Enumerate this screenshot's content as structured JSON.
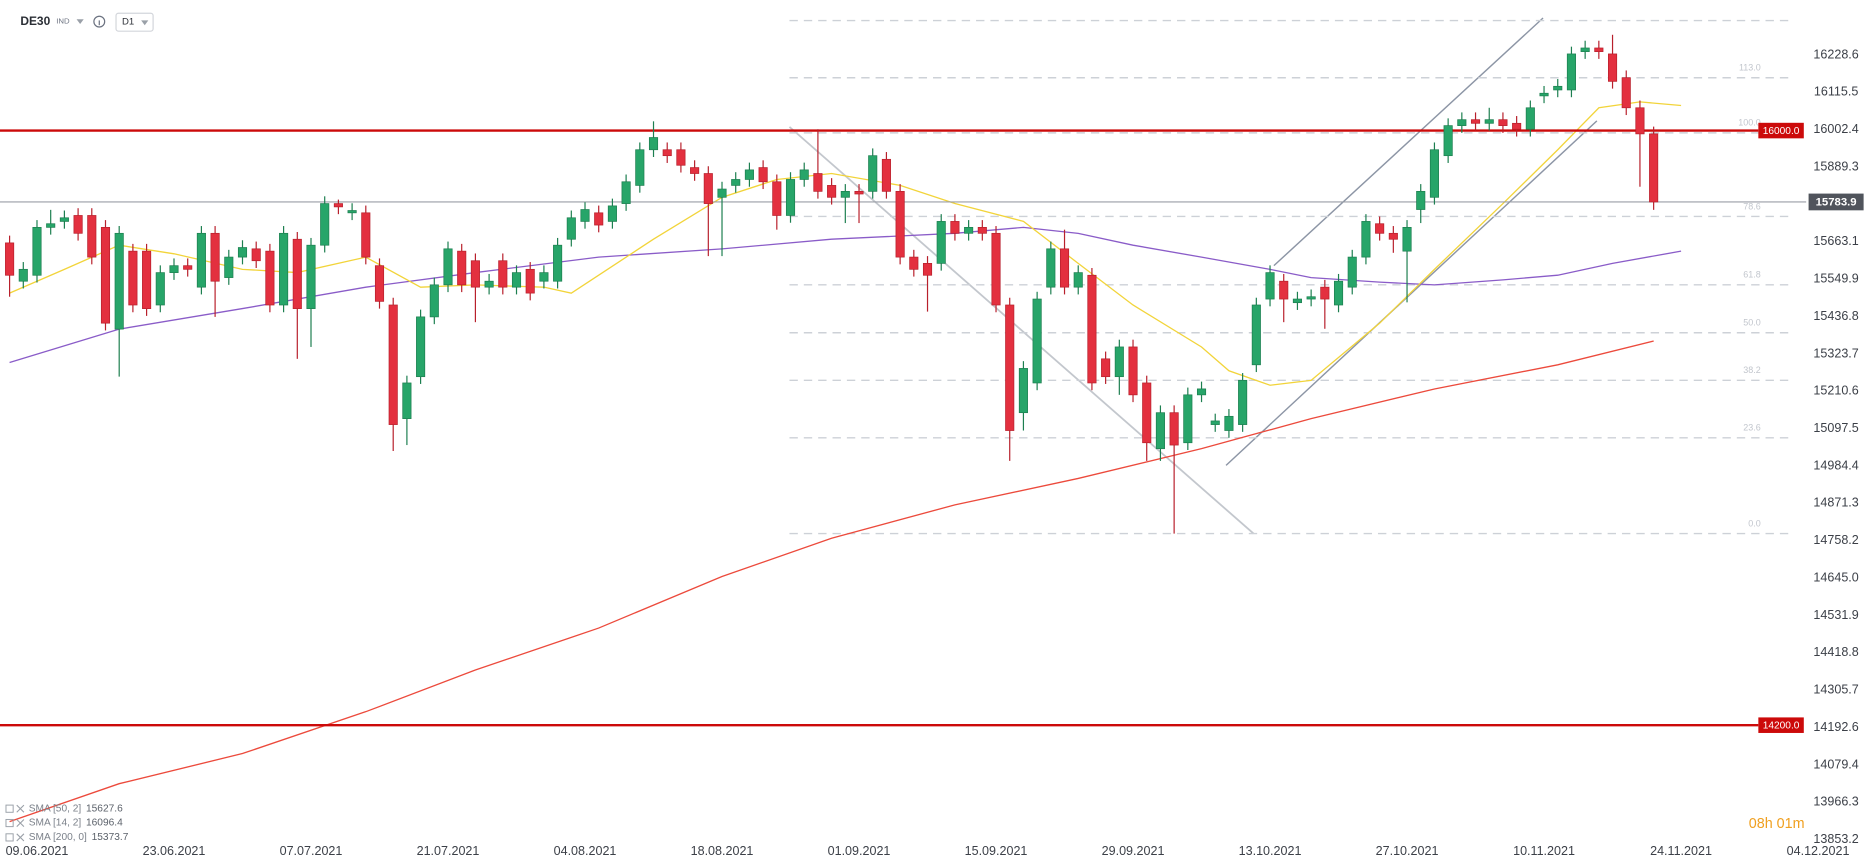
{
  "chart_data": {
    "type": "candlestick",
    "symbol": "DE30",
    "instrument_type": "IND",
    "interval": "D1",
    "countdown": "08h 01m",
    "up_color": "#27a569",
    "down_color": "#e3303f",
    "open": [
      15660,
      15544,
      15562,
      15707,
      15725,
      15743,
      15743,
      15707,
      15399,
      15635,
      15635,
      15472,
      15570,
      15591,
      15526,
      15689,
      15555,
      15617,
      15642,
      15635,
      15472,
      15671,
      15461,
      15653,
      15779,
      15751,
      15751,
      15591,
      15472,
      15128,
      15255,
      15436,
      15533,
      15635,
      15606,
      15526,
      15606,
      15526,
      15580,
      15544,
      15544,
      15671,
      15725,
      15751,
      15725,
      15779,
      15834,
      15942,
      15942,
      15942,
      15888,
      15870,
      15798,
      15834,
      15852,
      15888,
      15845,
      15743,
      15852,
      15870,
      15834,
      15798,
      15816,
      15816,
      15913,
      15816,
      15617,
      15598,
      15598,
      15725,
      15689,
      15707,
      15689,
      15472,
      15146,
      15236,
      15526,
      15642,
      15526,
      15562,
      15309,
      15255,
      15345,
      15236,
      15037,
      15146,
      15055,
      15200,
      15110,
      15092,
      15110,
      15291,
      15490,
      15544,
      15479,
      15490,
      15526,
      15472,
      15526,
      15617,
      15718,
      15689,
      15635,
      15761,
      15798,
      15924,
      16015,
      16033,
      16022,
      16033,
      16022,
      16004,
      16105,
      16123,
      16123,
      16239,
      16250,
      16232,
      16160,
      16069,
      15990
    ],
    "high": [
      15682,
      15602,
      15729,
      15760,
      15758,
      15765,
      15765,
      15729,
      15711,
      15657,
      15657,
      15592,
      15613,
      15613,
      15711,
      15711,
      15639,
      15668,
      15664,
      15657,
      15711,
      15693,
      15675,
      15801,
      15791,
      15780,
      15773,
      15613,
      15494,
      15258,
      15458,
      15555,
      15664,
      15657,
      15628,
      15566,
      15628,
      15592,
      15602,
      15592,
      15675,
      15758,
      15783,
      15773,
      15794,
      15867,
      15964,
      16028,
      15964,
      15964,
      15910,
      15892,
      15845,
      15874,
      15903,
      15910,
      15867,
      15874,
      15903,
      16004,
      15856,
      15838,
      15838,
      15946,
      15935,
      15838,
      15639,
      15620,
      15747,
      15747,
      15729,
      15729,
      15711,
      15494,
      15302,
      15512,
      15664,
      15700,
      15592,
      15584,
      15331,
      15367,
      15367,
      15258,
      15168,
      15168,
      15222,
      15240,
      15143,
      15157,
      15266,
      15494,
      15592,
      15566,
      15512,
      15519,
      15548,
      15566,
      15639,
      15747,
      15740,
      15711,
      15729,
      15838,
      15964,
      16037,
      16055,
      16055,
      16069,
      16055,
      16044,
      16091,
      16135,
      16156,
      16254,
      16272,
      16272,
      16290,
      16182,
      16091,
      16012
    ],
    "low": [
      15497,
      15522,
      15540,
      15685,
      15703,
      15667,
      15595,
      15395,
      15255,
      15450,
      15439,
      15450,
      15548,
      15558,
      15504,
      15436,
      15533,
      15595,
      15584,
      15450,
      15450,
      15309,
      15345,
      15631,
      15747,
      15729,
      15595,
      15461,
      15030,
      15048,
      15233,
      15414,
      15511,
      15511,
      15420,
      15504,
      15504,
      15504,
      15486,
      15522,
      15522,
      15649,
      15703,
      15692,
      15703,
      15757,
      15812,
      15920,
      15902,
      15873,
      15848,
      15620,
      15620,
      15812,
      15830,
      15823,
      15700,
      15721,
      15830,
      15794,
      15776,
      15720,
      15720,
      15794,
      15794,
      15595,
      15558,
      15452,
      15576,
      15667,
      15667,
      15667,
      15450,
      15000,
      15092,
      15214,
      15504,
      15504,
      15504,
      15214,
      15233,
      15200,
      15178,
      15000,
      15000,
      14780,
      15033,
      15178,
      15088,
      15070,
      15088,
      15269,
      15468,
      15420,
      15457,
      15468,
      15400,
      15450,
      15504,
      15595,
      15667,
      15630,
      15480,
      15720,
      15776,
      15902,
      15993,
      16000,
      16000,
      15993,
      15982,
      15982,
      16083,
      16101,
      16101,
      16217,
      16217,
      16127,
      16047,
      15830,
      15760
    ],
    "close": [
      15562,
      15580,
      15707,
      15718,
      15736,
      15689,
      15617,
      15417,
      15689,
      15472,
      15461,
      15570,
      15591,
      15580,
      15689,
      15544,
      15617,
      15646,
      15606,
      15472,
      15689,
      15461,
      15653,
      15779,
      15769,
      15758,
      15617,
      15483,
      15110,
      15236,
      15436,
      15533,
      15642,
      15533,
      15526,
      15544,
      15526,
      15570,
      15508,
      15570,
      15653,
      15736,
      15761,
      15714,
      15772,
      15845,
      15942,
      15979,
      15924,
      15895,
      15870,
      15779,
      15823,
      15852,
      15881,
      15845,
      15743,
      15852,
      15881,
      15816,
      15798,
      15816,
      15808,
      15924,
      15816,
      15617,
      15580,
      15562,
      15725,
      15689,
      15707,
      15689,
      15472,
      15092,
      15280,
      15490,
      15642,
      15526,
      15570,
      15236,
      15255,
      15345,
      15200,
      15055,
      15146,
      15048,
      15200,
      15218,
      15121,
      15135,
      15244,
      15472,
      15570,
      15490,
      15490,
      15497,
      15490,
      15544,
      15617,
      15725,
      15689,
      15671,
      15707,
      15816,
      15942,
      16015,
      16033,
      16022,
      16033,
      16015,
      16004,
      16069,
      16113,
      16134,
      16232,
      16250,
      16239,
      16149,
      16069,
      15990,
      15783.9
    ],
    "xlim": [
      -0.7,
      135.5
    ],
    "xticks": [
      {
        "value": 2,
        "label": "09.06.2021"
      },
      {
        "value": 12,
        "label": "23.06.2021"
      },
      {
        "value": 22,
        "label": "07.07.2021"
      },
      {
        "value": 32,
        "label": "21.07.2021"
      },
      {
        "value": 42,
        "label": "04.08.2021"
      },
      {
        "value": 52,
        "label": "18.08.2021"
      },
      {
        "value": 62,
        "label": "01.09.2021"
      },
      {
        "value": 72,
        "label": "15.09.2021"
      },
      {
        "value": 82,
        "label": "29.09.2021"
      },
      {
        "value": 92,
        "label": "13.10.2021"
      },
      {
        "value": 102,
        "label": "27.10.2021"
      },
      {
        "value": 112,
        "label": "10.11.2021"
      },
      {
        "value": 122,
        "label": "24.11.2021"
      },
      {
        "value": 132,
        "label": "04.12.2021"
      }
    ],
    "ylim": [
      13806,
      16395
    ],
    "yticks": [
      16228.6,
      16115.5,
      16002.4,
      15889.3,
      15663.1,
      15549.9,
      15436.8,
      15323.7,
      15210.6,
      15097.5,
      14984.4,
      14871.3,
      14758.2,
      {
        "value": 14645,
        "label": "14645.0"
      },
      14531.9,
      14418.8,
      14305.7,
      14192.6,
      14079.4,
      13966.3,
      13853.2
    ],
    "levels": [
      {
        "value": 16000,
        "label": "16000.0"
      },
      {
        "value": 14200,
        "label": "14200.0"
      }
    ],
    "level_color": "#cc0a0a",
    "fibonacci": [
      {
        "label": "0.0",
        "price": 14780
      },
      {
        "label": "23.6",
        "price": 15070
      },
      {
        "label": "38.2",
        "price": 15244
      },
      {
        "label": "50.0",
        "price": 15388
      },
      {
        "label": "61.8",
        "price": 15533
      },
      {
        "label": "78.6",
        "price": 15740
      },
      {
        "label": "100.0",
        "price": 15993
      },
      {
        "label": "113.0",
        "price": 16160
      },
      {
        "price": 16333
      }
    ],
    "indicators": [
      {
        "name": "SMA [50, 2]",
        "last": 15627.6,
        "color": "#8a5cc8",
        "x": [
          0,
          8,
          17,
          26,
          34,
          43,
          52,
          60,
          69,
          74,
          78,
          82,
          87,
          92,
          95,
          100,
          104,
          109,
          113,
          117,
          122
        ],
        "values": [
          15298,
          15399,
          15461,
          15526,
          15570,
          15617,
          15642,
          15671,
          15689,
          15707,
          15689,
          15653,
          15617,
          15580,
          15555,
          15541,
          15533,
          15548,
          15562,
          15598,
          15635
        ]
      },
      {
        "name": "SMA [14, 2]",
        "last": 16096.4,
        "color": "#f2d43a",
        "x": [
          0,
          4,
          8,
          12,
          17,
          21,
          26,
          30,
          34,
          39,
          41,
          43,
          47,
          52,
          56,
          60,
          65,
          69,
          74,
          78,
          82,
          87,
          89,
          92,
          95,
          100,
          104,
          109,
          113,
          116,
          119,
          122
        ],
        "values": [
          15508,
          15580,
          15653,
          15627,
          15580,
          15570,
          15617,
          15526,
          15533,
          15526,
          15508,
          15562,
          15671,
          15798,
          15852,
          15870,
          15834,
          15779,
          15725,
          15598,
          15472,
          15345,
          15273,
          15229,
          15244,
          15417,
          15580,
          15779,
          15942,
          16069,
          16087,
          16076
        ]
      },
      {
        "name": "SMA [200, 0]",
        "last": 15373.7,
        "color": "#ec4a3c",
        "x": [
          0,
          8,
          17,
          26,
          34,
          43,
          52,
          60,
          69,
          78,
          87,
          95,
          104,
          113,
          120
        ],
        "values": [
          13908,
          14023,
          14114,
          14241,
          14367,
          14494,
          14650,
          14766,
          14867,
          14947,
          15037,
          15128,
          15218,
          15291,
          15363
        ]
      }
    ]
  }
}
